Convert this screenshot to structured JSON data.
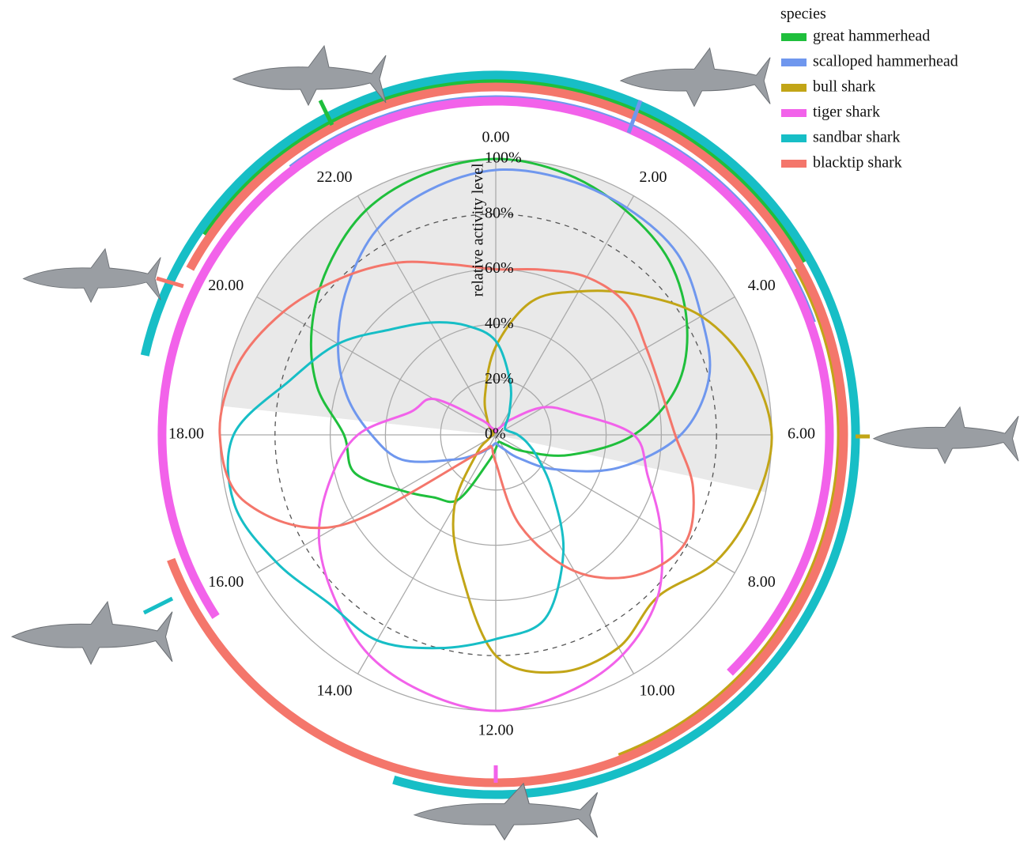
{
  "chart_data": {
    "type": "polar-line",
    "y_label": "relative activity level",
    "x": [
      0,
      1,
      2,
      3,
      4,
      5,
      6,
      7,
      8,
      9,
      10,
      11,
      12,
      13,
      14,
      15,
      16,
      17,
      18,
      19,
      20,
      21,
      22,
      23
    ],
    "xlim": [
      0,
      24
    ],
    "xticks": [
      {
        "value": 0,
        "label": "0.00"
      },
      {
        "value": 2,
        "label": "2.00"
      },
      {
        "value": 4,
        "label": "4.00"
      },
      {
        "value": 6,
        "label": "6.00"
      },
      {
        "value": 8,
        "label": "8.00"
      },
      {
        "value": 10,
        "label": "10.00"
      },
      {
        "value": 12,
        "label": "12.00"
      },
      {
        "value": 14,
        "label": "14.00"
      },
      {
        "value": 16,
        "label": "16.00"
      },
      {
        "value": 18,
        "label": "18.00"
      },
      {
        "value": 20,
        "label": "20.00"
      },
      {
        "value": 22,
        "label": "22.00"
      }
    ],
    "ylim": [
      0,
      100
    ],
    "yticks": [
      {
        "value": 0,
        "label": "0%"
      },
      {
        "value": 20,
        "label": "20%"
      },
      {
        "value": 40,
        "label": "40%"
      },
      {
        "value": 60,
        "label": "60%"
      },
      {
        "value": 80,
        "label": "80%"
      },
      {
        "value": 100,
        "label": "100%"
      }
    ],
    "dashed_yticks": [
      80
    ],
    "shaded_x_range": [
      18.4,
      6.8
    ],
    "legend_title": "species",
    "legend": "top-right",
    "series": [
      {
        "name": "great hammerhead",
        "color": "#1fbf3c",
        "active_hours": [
          20.3,
          4.05
        ],
        "values": [
          100,
          98,
          94,
          89,
          80,
          68,
          50,
          28,
          12,
          5,
          3,
          3,
          5,
          10,
          27,
          32,
          40,
          53,
          55,
          67,
          77,
          86,
          94,
          98
        ]
      },
      {
        "name": "scalloped hammerhead",
        "color": "#6f97ee",
        "active_hours": [
          21.5,
          4.7
        ],
        "values": [
          96,
          96,
          95,
          93,
          86,
          80,
          67,
          46,
          25,
          12,
          6,
          4,
          3,
          4,
          6,
          10,
          18,
          35,
          45,
          56,
          66,
          76,
          86,
          92
        ]
      },
      {
        "name": "bull shark",
        "color": "#c2a517",
        "active_hours": [
          4.07,
          10.6
        ],
        "values": [
          32,
          50,
          60,
          72,
          86,
          95,
          100,
          97,
          92,
          83,
          89,
          89,
          80,
          50,
          30,
          10,
          3,
          2,
          1,
          1,
          1,
          2,
          6,
          15
        ]
      },
      {
        "name": "tiger shark",
        "color": "#f262ea",
        "active_hours": [
          15.8,
          9.03
        ],
        "values": [
          1,
          2,
          3,
          8,
          20,
          30,
          50,
          57,
          69,
          83,
          92,
          97,
          100,
          97,
          92,
          83,
          74,
          62,
          50,
          32,
          26,
          8,
          3,
          2
        ]
      },
      {
        "name": "sandbar shark",
        "color": "#17bec6",
        "active_hours": [
          18.85,
          13.1
        ],
        "values": [
          34,
          20,
          10,
          5,
          4,
          5,
          8,
          12,
          18,
          29,
          49,
          69,
          74,
          80,
          86,
          86,
          92,
          98,
          95,
          77,
          66,
          54,
          47,
          41
        ]
      },
      {
        "name": "blacktip shark",
        "color": "#f4766b",
        "active_hours": [
          19.9,
          16.6
        ],
        "values": [
          60,
          62,
          66,
          67,
          63,
          62,
          65,
          74,
          79,
          72,
          57,
          34,
          10,
          5,
          5,
          10,
          66,
          94,
          100,
          97,
          89,
          80,
          72,
          64
        ]
      }
    ]
  }
}
